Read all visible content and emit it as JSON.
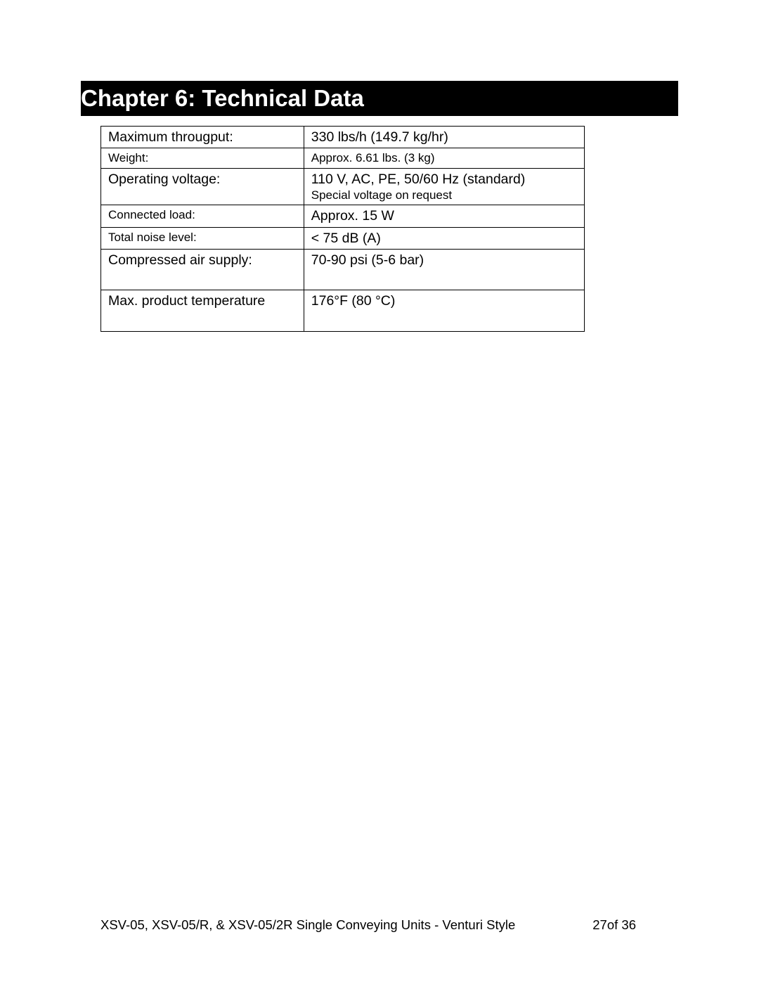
{
  "header": {
    "title": "Chapter 6:  Technical Data"
  },
  "table": {
    "columns": [
      "label",
      "value"
    ],
    "col_widths": [
      "42%",
      "58%"
    ],
    "border_color": "#000000",
    "background_color": "#ffffff",
    "font_sizes": {
      "normal": 19.5,
      "small": 17
    },
    "rows": [
      {
        "label": "Maximum througput:",
        "value": "330 lbs/h (149.7 kg/hr)",
        "label_small": false,
        "value_small": false,
        "tall": false
      },
      {
        "label": "Weight:",
        "value": "Approx. 6.61 lbs. (3 kg)",
        "label_small": true,
        "value_small": true,
        "tall": false
      },
      {
        "label": "Operating voltage:",
        "value": "110 V, AC, PE, 50/60 Hz (standard)",
        "value_sub": "Special voltage on request",
        "label_small": false,
        "value_small": false,
        "tall": false
      },
      {
        "label": "Connected load:",
        "value": "Approx. 15 W",
        "label_small": true,
        "value_small": false,
        "tall": false
      },
      {
        "label": "Total noise level:",
        "value": "< 75 dB (A)",
        "label_small": true,
        "value_small": false,
        "tall": false
      },
      {
        "label": "Compressed air supply:",
        "value": "70-90 psi (5-6 bar)",
        "label_small": false,
        "value_small": false,
        "tall": true
      },
      {
        "label": "Max. product temperature",
        "value": "176°F (80 °C)",
        "label_small": false,
        "value_small": false,
        "tall": true
      }
    ]
  },
  "footer": {
    "doc_title": "XSV-05, XSV-05/R, & XSV-05/2R Single Conveying Units - Venturi Style",
    "page_info": "27of 36"
  },
  "colors": {
    "page_bg": "#ffffff",
    "header_bg": "#000000",
    "header_text": "#ffffff",
    "body_text": "#000000",
    "border": "#000000"
  }
}
